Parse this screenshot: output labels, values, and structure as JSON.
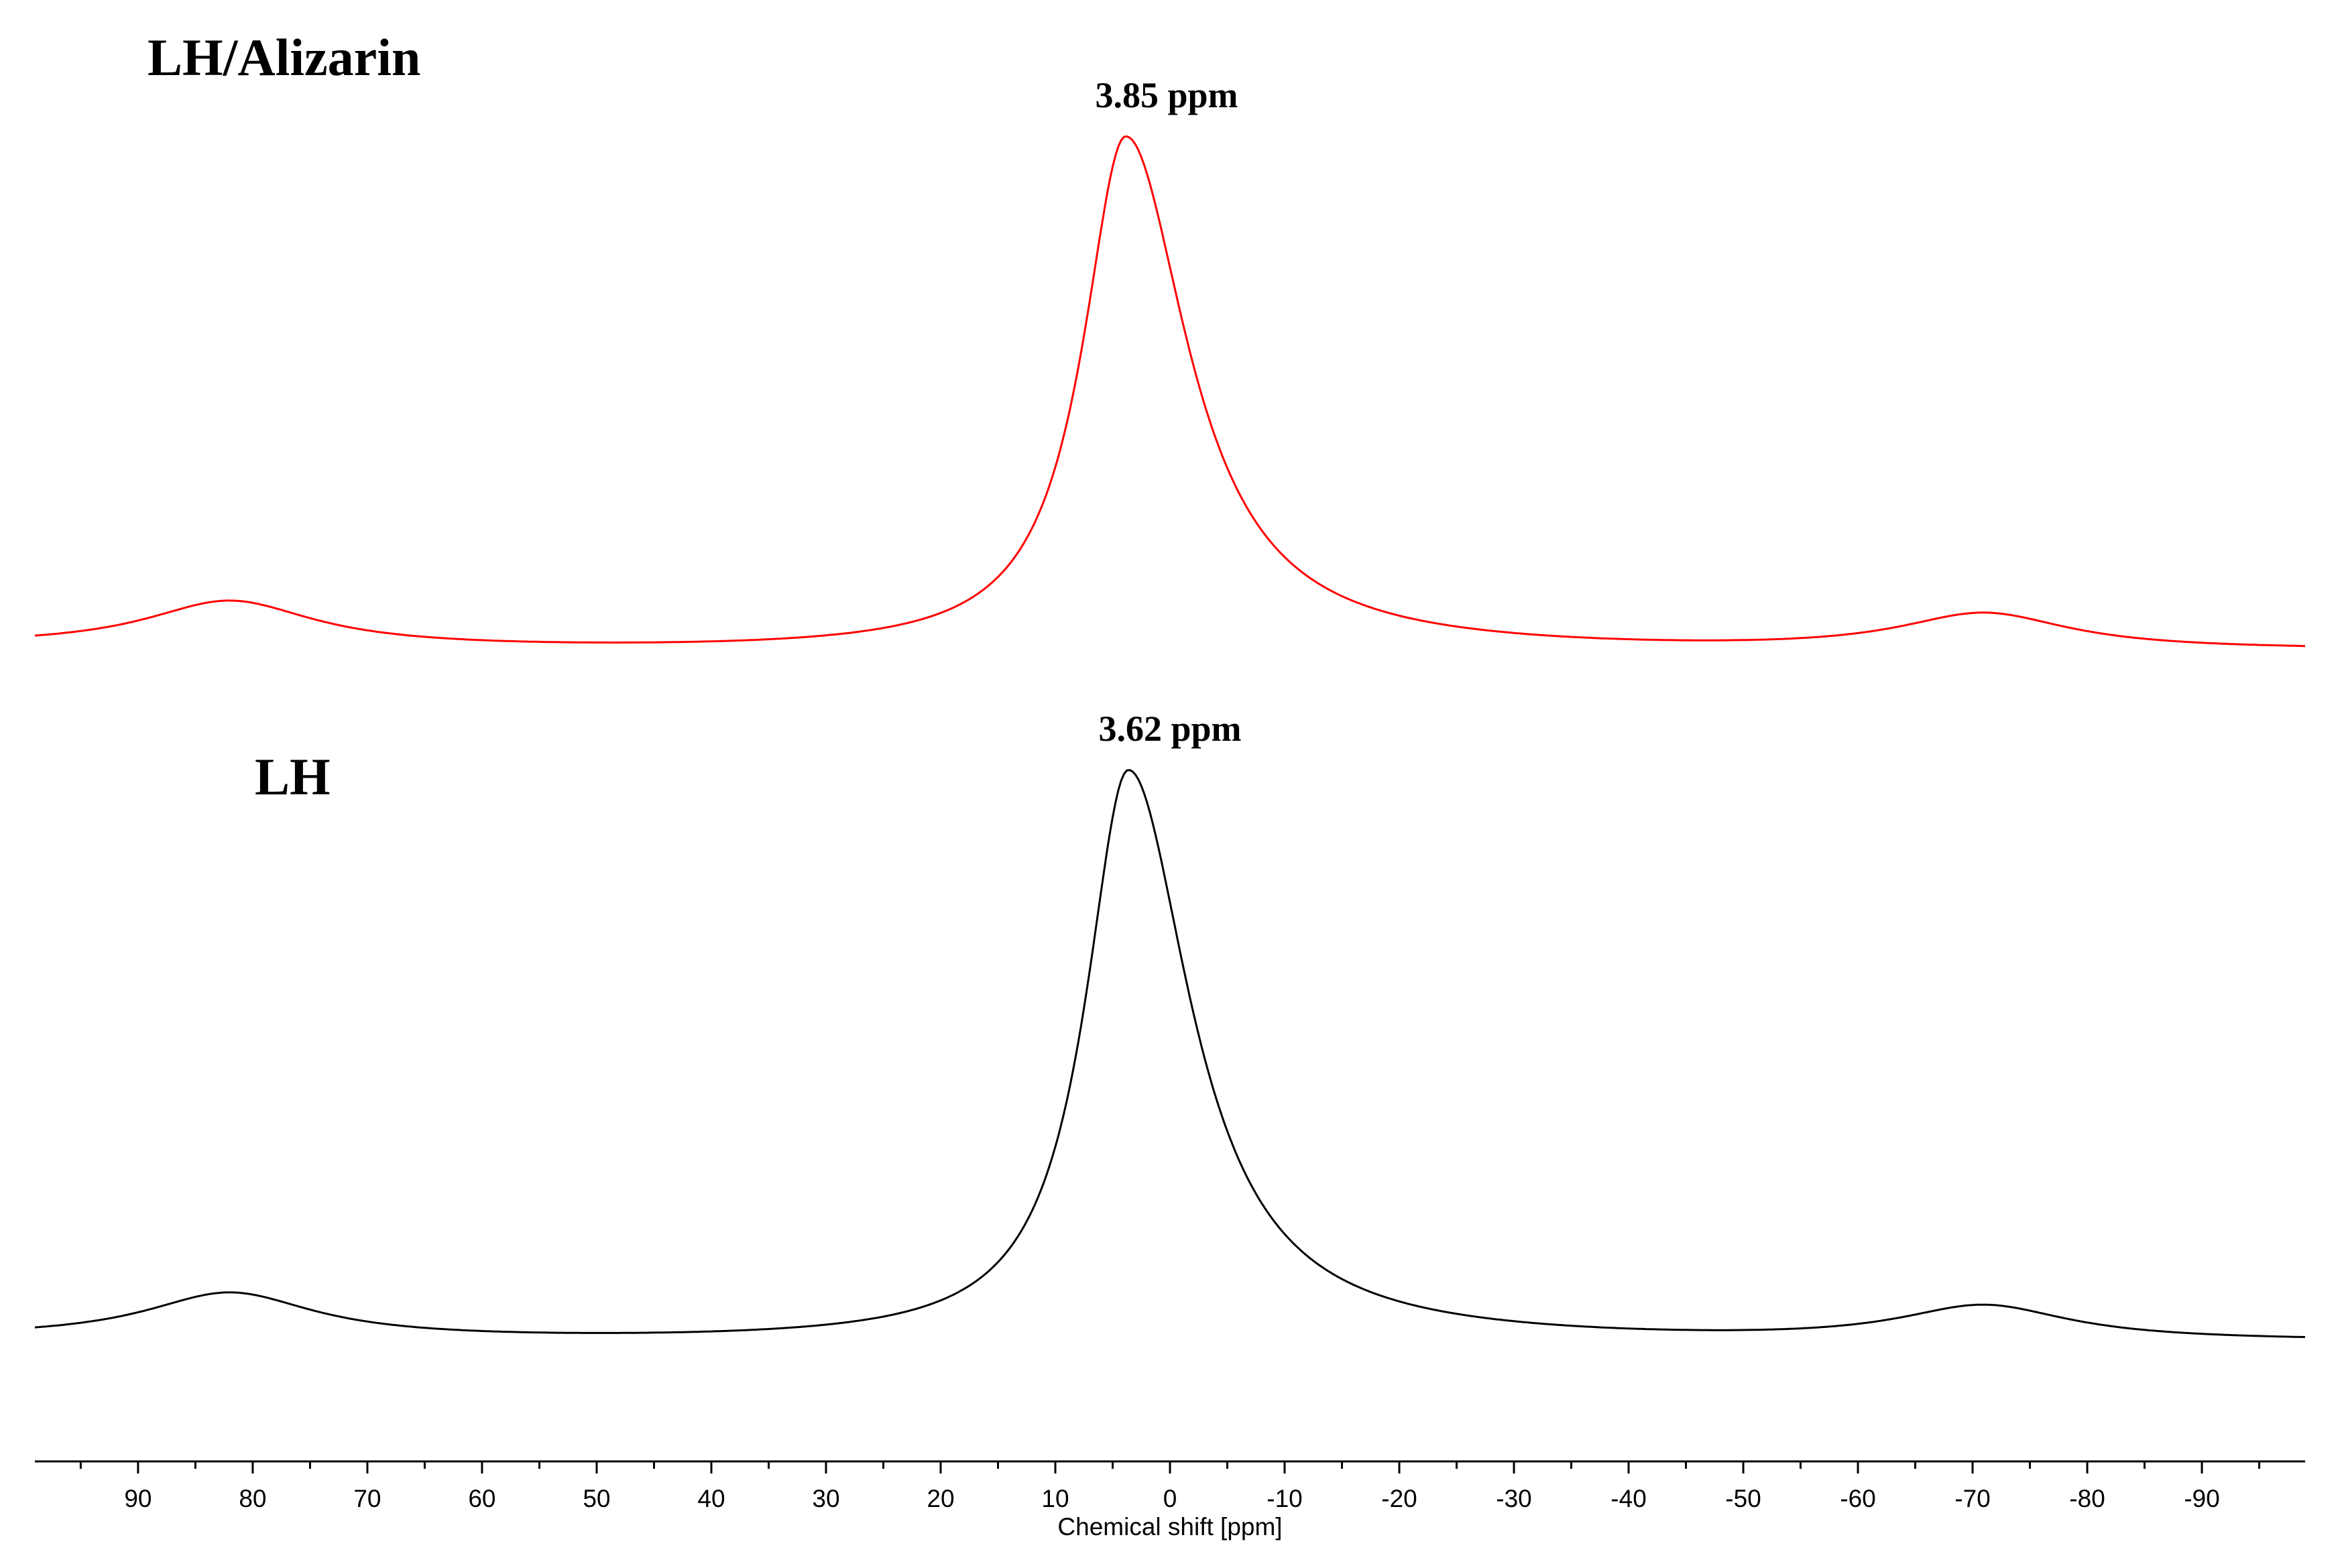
{
  "chart_data": {
    "type": "line",
    "xlabel": "Chemical shift [ppm]",
    "xlim": [
      99,
      -99
    ],
    "x_reversed": true,
    "xticks": [
      90,
      80,
      70,
      60,
      50,
      40,
      30,
      20,
      10,
      0,
      -10,
      -20,
      -30,
      -40,
      -50,
      -60,
      -70,
      -80,
      -90
    ],
    "xtick_labels": [
      "90",
      "80",
      "70",
      "60",
      "50",
      "40",
      "30",
      "20",
      "10",
      "0",
      "-10",
      "-20",
      "-30",
      "-40",
      "-50",
      "-60",
      "-70",
      "-80",
      "-90"
    ],
    "y_axis_shown": false,
    "grid": false,
    "series": [
      {
        "name": "LH/Alizarin",
        "color": "#ff0000",
        "peak_label": "3.85 ppm",
        "peaks": [
          {
            "center": 3.85,
            "relative_intensity": 1.0
          },
          {
            "center": 82.0,
            "relative_intensity": 0.09
          },
          {
            "center": -71.0,
            "relative_intensity": 0.07
          }
        ]
      },
      {
        "name": "LH",
        "color": "#000000",
        "peak_label": "3.62 ppm",
        "peaks": [
          {
            "center": 3.62,
            "relative_intensity": 1.0
          },
          {
            "center": 82.0,
            "relative_intensity": 0.08
          },
          {
            "center": -71.0,
            "relative_intensity": 0.06
          }
        ]
      }
    ]
  }
}
